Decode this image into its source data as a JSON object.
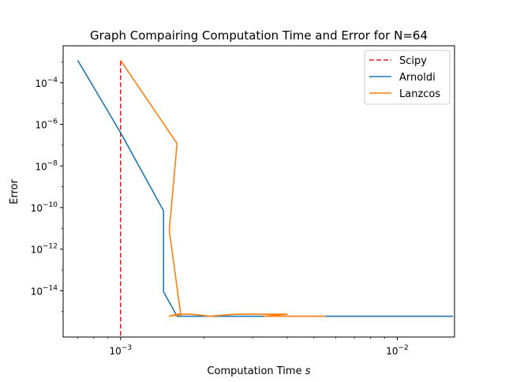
{
  "chart_data": {
    "type": "line",
    "title": "Graph Compairing Computation Time and Error for N=64",
    "xlabel": "Computation Time s",
    "xlabel_parts": {
      "text": "Computation Time ",
      "symbol": "s"
    },
    "ylabel": "Error",
    "xscale": "log",
    "yscale": "log",
    "xlim": [
      0.00062,
      0.0161
    ],
    "ylim": [
      6e-17,
      0.006
    ],
    "grid": false,
    "legend_position": "top-right",
    "x_ticks": [
      {
        "value": 0.001,
        "base": "10",
        "exp": "−3"
      },
      {
        "value": 0.01,
        "base": "10",
        "exp": "−2"
      }
    ],
    "y_ticks": [
      {
        "value": 1e-14,
        "base": "10",
        "exp": "−14"
      },
      {
        "value": 1e-12,
        "base": "10",
        "exp": "−12"
      },
      {
        "value": 1e-10,
        "base": "10",
        "exp": "−10"
      },
      {
        "value": 1e-08,
        "base": "10",
        "exp": "−8"
      },
      {
        "value": 1e-06,
        "base": "10",
        "exp": "−6"
      },
      {
        "value": 0.0001,
        "base": "10",
        "exp": "−4"
      }
    ],
    "series": [
      {
        "name": "Scipy",
        "color": "#d62728",
        "style": "dashed",
        "points": [
          [
            0.001,
            0.0011
          ],
          [
            0.001,
            6e-17
          ]
        ]
      },
      {
        "name": "Arnoldi",
        "color": "#1f77b4",
        "style": "solid",
        "points": [
          [
            0.0007,
            0.0012
          ],
          [
            0.001,
            4e-07
          ],
          [
            0.00143,
            7e-11
          ],
          [
            0.00143,
            9e-15
          ],
          [
            0.0016,
            6e-16
          ],
          [
            0.0025,
            6e-16
          ],
          [
            0.0035,
            6e-16
          ],
          [
            0.0159,
            6e-16
          ]
        ]
      },
      {
        "name": "Lanzcos",
        "color": "#ff7f0e",
        "style": "solid",
        "points": [
          [
            0.001,
            0.0012
          ],
          [
            0.0016,
            1.2e-07
          ],
          [
            0.0015,
            8e-12
          ],
          [
            0.00165,
            7e-16
          ],
          [
            0.0015,
            6e-16
          ],
          [
            0.0016,
            7.5e-16
          ],
          [
            0.0018,
            7.5e-16
          ],
          [
            0.0021,
            6e-16
          ],
          [
            0.0026,
            7.5e-16
          ],
          [
            0.004,
            7.5e-16
          ],
          [
            0.0033,
            6e-16
          ],
          [
            0.0055,
            6e-16
          ]
        ]
      }
    ]
  }
}
